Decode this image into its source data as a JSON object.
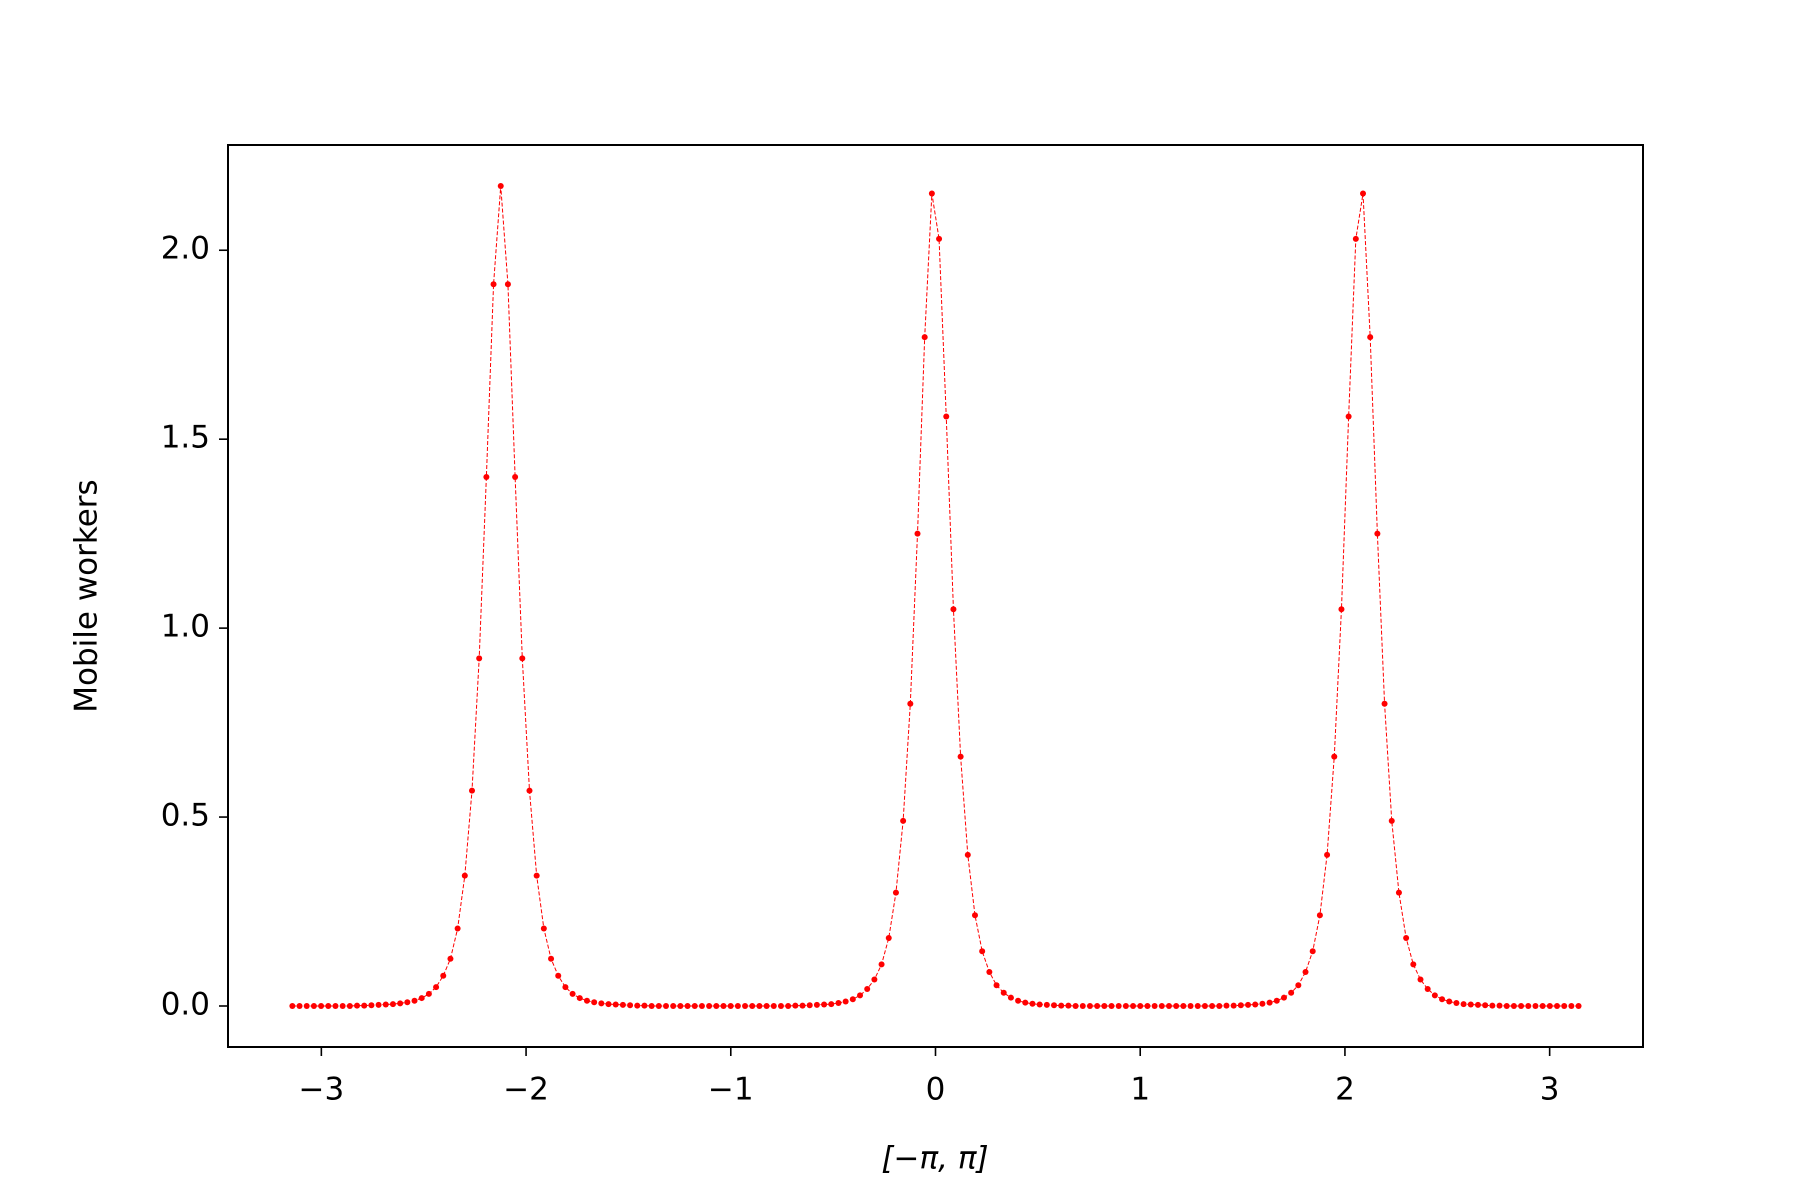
{
  "chart_data": {
    "type": "line",
    "xlabel": "[−π, π]",
    "ylabel": "Mobile workers",
    "x": [
      -3.1416,
      -3.1065,
      -3.0714,
      -3.0363,
      -3.0012,
      -2.9661,
      -2.931,
      -2.8959,
      -2.8608,
      -2.8257,
      -2.7906,
      -2.7555,
      -2.7204,
      -2.6853,
      -2.6502,
      -2.6151,
      -2.58,
      -2.5449,
      -2.5098,
      -2.4747,
      -2.4396,
      -2.4045,
      -2.3694,
      -2.3343,
      -2.2992,
      -2.2641,
      -2.229,
      -2.1939,
      -2.1588,
      -2.1237,
      -2.0886,
      -2.0535,
      -2.0184,
      -1.9833,
      -1.9482,
      -1.9131,
      -1.878,
      -1.8429,
      -1.8078,
      -1.7727,
      -1.7376,
      -1.7025,
      -1.6674,
      -1.6323,
      -1.5972,
      -1.5621,
      -1.527,
      -1.4919,
      -1.4568,
      -1.4217,
      -1.3866,
      -1.3515,
      -1.3164,
      -1.2813,
      -1.2462,
      -1.2111,
      -1.176,
      -1.1409,
      -1.1058,
      -1.0707,
      -1.0356,
      -1.0005,
      -0.9654,
      -0.9303,
      -0.8952,
      -0.8601,
      -0.825,
      -0.7899,
      -0.7548,
      -0.7197,
      -0.6846,
      -0.6495,
      -0.6144,
      -0.5793,
      -0.5442,
      -0.5091,
      -0.474,
      -0.4389,
      -0.4038,
      -0.3687,
      -0.3336,
      -0.2985,
      -0.2634,
      -0.2283,
      -0.1932,
      -0.1581,
      -0.123,
      -0.0879,
      -0.0528,
      -0.0177,
      0.0174,
      0.0525,
      0.0876,
      0.1227,
      0.1578,
      0.1929,
      0.228,
      0.2631,
      0.2982,
      0.3333,
      0.3684,
      0.4035,
      0.4386,
      0.4737,
      0.5088,
      0.5439,
      0.579,
      0.6141,
      0.6492,
      0.6843,
      0.7194,
      0.7545,
      0.7896,
      0.8247,
      0.8598,
      0.8949,
      0.93,
      0.9651,
      1.0002,
      1.0353,
      1.0704,
      1.1055,
      1.1406,
      1.1757,
      1.2108,
      1.2459,
      1.281,
      1.3161,
      1.3512,
      1.3863,
      1.4214,
      1.4565,
      1.4916,
      1.5267,
      1.5618,
      1.5969,
      1.632,
      1.6671,
      1.7022,
      1.7373,
      1.7724,
      1.8075,
      1.8426,
      1.8777,
      1.9128,
      1.9479,
      1.983,
      2.0181,
      2.0532,
      2.0883,
      2.1234,
      2.1585,
      2.1936,
      2.2287,
      2.2638,
      2.2989,
      2.334,
      2.3691,
      2.4042,
      2.4393,
      2.4744,
      2.5095,
      2.5446,
      2.5797,
      2.6148,
      2.6499,
      2.685,
      2.7201,
      2.7552,
      2.7903,
      2.8254,
      2.8605,
      2.8956,
      2.9307,
      2.9658,
      3.0009,
      3.036,
      3.0711,
      3.1062,
      3.1413
    ],
    "series": [
      {
        "color": "#ff0000",
        "values": [
          0,
          0,
          0,
          0,
          0,
          0,
          0,
          0,
          0,
          0.001,
          0.001,
          0.002,
          0.003,
          0.004,
          0.005,
          0.007,
          0.01,
          0.014,
          0.021,
          0.032,
          0.05,
          0.08,
          0.125,
          0.205,
          0.345,
          0.57,
          0.92,
          1.4,
          1.91,
          2.17,
          1.91,
          1.4,
          0.92,
          0.57,
          0.345,
          0.205,
          0.125,
          0.08,
          0.05,
          0.032,
          0.021,
          0.014,
          0.01,
          0.007,
          0.005,
          0.004,
          0.003,
          0.002,
          0.001,
          0.001,
          0,
          0,
          0,
          0,
          0,
          0,
          0,
          0,
          0,
          0,
          0,
          0,
          0,
          0,
          0,
          0,
          0,
          0,
          0,
          0,
          0.001,
          0.001,
          0.002,
          0.003,
          0.004,
          0.005,
          0.008,
          0.012,
          0.018,
          0.028,
          0.045,
          0.07,
          0.11,
          0.18,
          0.3,
          0.49,
          0.8,
          1.25,
          1.77,
          2.15,
          2.03,
          1.56,
          1.05,
          0.66,
          0.4,
          0.24,
          0.145,
          0.09,
          0.055,
          0.035,
          0.022,
          0.014,
          0.009,
          0.006,
          0.004,
          0.003,
          0.002,
          0.001,
          0.001,
          0,
          0,
          0,
          0,
          0,
          0,
          0,
          0,
          0,
          0,
          0,
          0,
          0,
          0,
          0,
          0,
          0,
          0,
          0,
          0,
          0,
          0.001,
          0.001,
          0.002,
          0.003,
          0.004,
          0.006,
          0.009,
          0.014,
          0.022,
          0.035,
          0.055,
          0.09,
          0.145,
          0.24,
          0.4,
          0.66,
          1.05,
          1.56,
          2.03,
          2.15,
          1.77,
          1.25,
          0.8,
          0.49,
          0.3,
          0.18,
          0.11,
          0.07,
          0.045,
          0.028,
          0.018,
          0.012,
          0.008,
          0.005,
          0.004,
          0.003,
          0.002,
          0.001,
          0.001,
          0,
          0,
          0,
          0,
          0,
          0,
          0,
          0,
          0,
          0,
          0
        ]
      }
    ],
    "xlim": [
      -3.456,
      3.456
    ],
    "ylim": [
      -0.1085,
      2.2785
    ],
    "xticks": [
      {
        "value": -3,
        "label": "−3"
      },
      {
        "value": -2,
        "label": "−2"
      },
      {
        "value": -1,
        "label": "−1"
      },
      0,
      1,
      2,
      3
    ],
    "yticks": [
      {
        "value": 0,
        "label": "0.0"
      },
      0.5,
      {
        "value": 1,
        "label": "1.0"
      },
      1.5,
      {
        "value": 2,
        "label": "2.0"
      }
    ],
    "grid": false
  }
}
